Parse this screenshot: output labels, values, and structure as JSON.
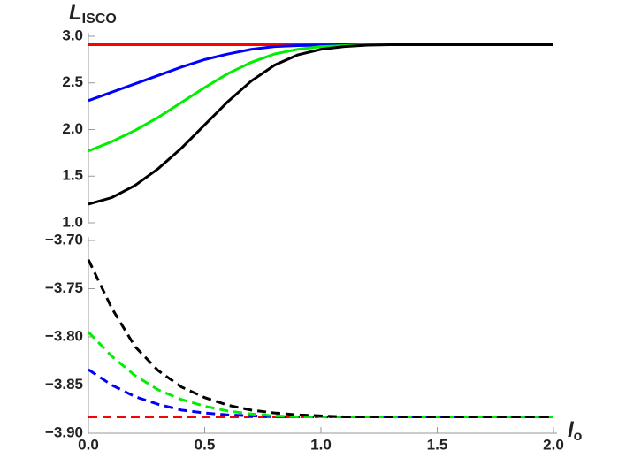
{
  "chart_data": [
    {
      "type": "line",
      "ylabel": "L",
      "ylabel_sub": "ISCO",
      "x": [
        0,
        0.1,
        0.2,
        0.3,
        0.4,
        0.5,
        0.6,
        0.7,
        0.8,
        0.9,
        1.0,
        1.1,
        1.2,
        1.3,
        1.4,
        1.5,
        1.6,
        1.7,
        1.8,
        1.9,
        2.0
      ],
      "xlim": [
        0,
        2
      ],
      "ylim": [
        1.0,
        3.0
      ],
      "yticks": [
        {
          "value": 1.0,
          "label": "1.0"
        },
        {
          "value": 1.5,
          "label": "1.5"
        },
        {
          "value": 2.0,
          "label": "2.0"
        },
        {
          "value": 2.5,
          "label": "2.5"
        },
        {
          "value": 3.0,
          "label": "3.0"
        }
      ],
      "series": [
        {
          "color": "#ff0000",
          "style": "solid",
          "values": [
            2.91,
            2.91,
            2.91,
            2.91,
            2.91,
            2.91,
            2.91,
            2.91,
            2.91,
            2.91,
            2.91,
            2.91,
            2.91,
            2.91,
            2.91,
            2.91,
            2.91,
            2.91,
            2.91,
            2.91,
            2.91
          ]
        },
        {
          "color": "#0000ff",
          "style": "solid",
          "values": [
            2.31,
            2.4,
            2.49,
            2.58,
            2.67,
            2.75,
            2.81,
            2.86,
            2.89,
            2.9,
            2.905,
            2.91,
            2.91,
            2.91,
            2.91,
            2.91,
            2.91,
            2.91,
            2.91,
            2.91,
            2.91
          ]
        },
        {
          "color": "#00ee00",
          "style": "solid",
          "values": [
            1.77,
            1.87,
            1.99,
            2.13,
            2.29,
            2.45,
            2.6,
            2.72,
            2.81,
            2.86,
            2.89,
            2.9,
            2.91,
            2.91,
            2.91,
            2.91,
            2.91,
            2.91,
            2.91,
            2.91,
            2.91
          ]
        },
        {
          "color": "#000000",
          "style": "solid",
          "values": [
            1.2,
            1.27,
            1.4,
            1.58,
            1.8,
            2.05,
            2.3,
            2.52,
            2.69,
            2.8,
            2.86,
            2.89,
            2.905,
            2.91,
            2.91,
            2.91,
            2.91,
            2.91,
            2.91,
            2.91,
            2.91
          ]
        }
      ]
    },
    {
      "type": "line",
      "xlabel": "l",
      "xlabel_sub": "o",
      "x": [
        0,
        0.1,
        0.2,
        0.3,
        0.4,
        0.5,
        0.6,
        0.7,
        0.8,
        0.9,
        1.0,
        1.1,
        1.2,
        1.3,
        1.4,
        1.5,
        1.6,
        1.7,
        1.8,
        1.9,
        2.0
      ],
      "xlim": [
        0,
        2
      ],
      "xticks": [
        {
          "value": 0,
          "label": "0.0"
        },
        {
          "value": 0.5,
          "label": "0.5"
        },
        {
          "value": 1.0,
          "label": "1.0"
        },
        {
          "value": 1.5,
          "label": "1.5"
        },
        {
          "value": 2.0,
          "label": "2.0"
        }
      ],
      "ylim": [
        -3.9,
        -3.7
      ],
      "yticks": [
        {
          "value": -3.9,
          "label": "−3.90"
        },
        {
          "value": -3.85,
          "label": "−3.85"
        },
        {
          "value": -3.8,
          "label": "−3.80"
        },
        {
          "value": -3.75,
          "label": "−3.75"
        },
        {
          "value": -3.7,
          "label": "−3.70"
        }
      ],
      "series": [
        {
          "color": "#ff0000",
          "style": "dashed",
          "values": [
            -3.883,
            -3.883,
            -3.883,
            -3.883,
            -3.883,
            -3.883,
            -3.883,
            -3.883,
            -3.883,
            -3.883,
            -3.883,
            -3.883,
            -3.883,
            -3.883,
            -3.883,
            -3.883,
            -3.883,
            -3.883,
            -3.883,
            -3.883,
            -3.883
          ]
        },
        {
          "color": "#0000ff",
          "style": "dashed",
          "values": [
            -3.834,
            -3.85,
            -3.862,
            -3.87,
            -3.876,
            -3.879,
            -3.881,
            -3.882,
            -3.883,
            -3.883,
            -3.883,
            -3.883,
            -3.883,
            -3.883,
            -3.883,
            -3.883,
            -3.883,
            -3.883,
            -3.883,
            -3.883,
            -3.883
          ]
        },
        {
          "color": "#00ee00",
          "style": "dashed",
          "values": [
            -3.795,
            -3.82,
            -3.84,
            -3.855,
            -3.865,
            -3.872,
            -3.877,
            -3.88,
            -3.882,
            -3.883,
            -3.883,
            -3.883,
            -3.883,
            -3.883,
            -3.883,
            -3.883,
            -3.883,
            -3.883,
            -3.883,
            -3.883,
            -3.883
          ]
        },
        {
          "color": "#000000",
          "style": "dashed",
          "values": [
            -3.72,
            -3.77,
            -3.81,
            -3.835,
            -3.852,
            -3.863,
            -3.871,
            -3.876,
            -3.879,
            -3.881,
            -3.882,
            -3.883,
            -3.883,
            -3.883,
            -3.883,
            -3.883,
            -3.883,
            -3.883,
            -3.883,
            -3.883,
            -3.883
          ]
        }
      ]
    }
  ]
}
